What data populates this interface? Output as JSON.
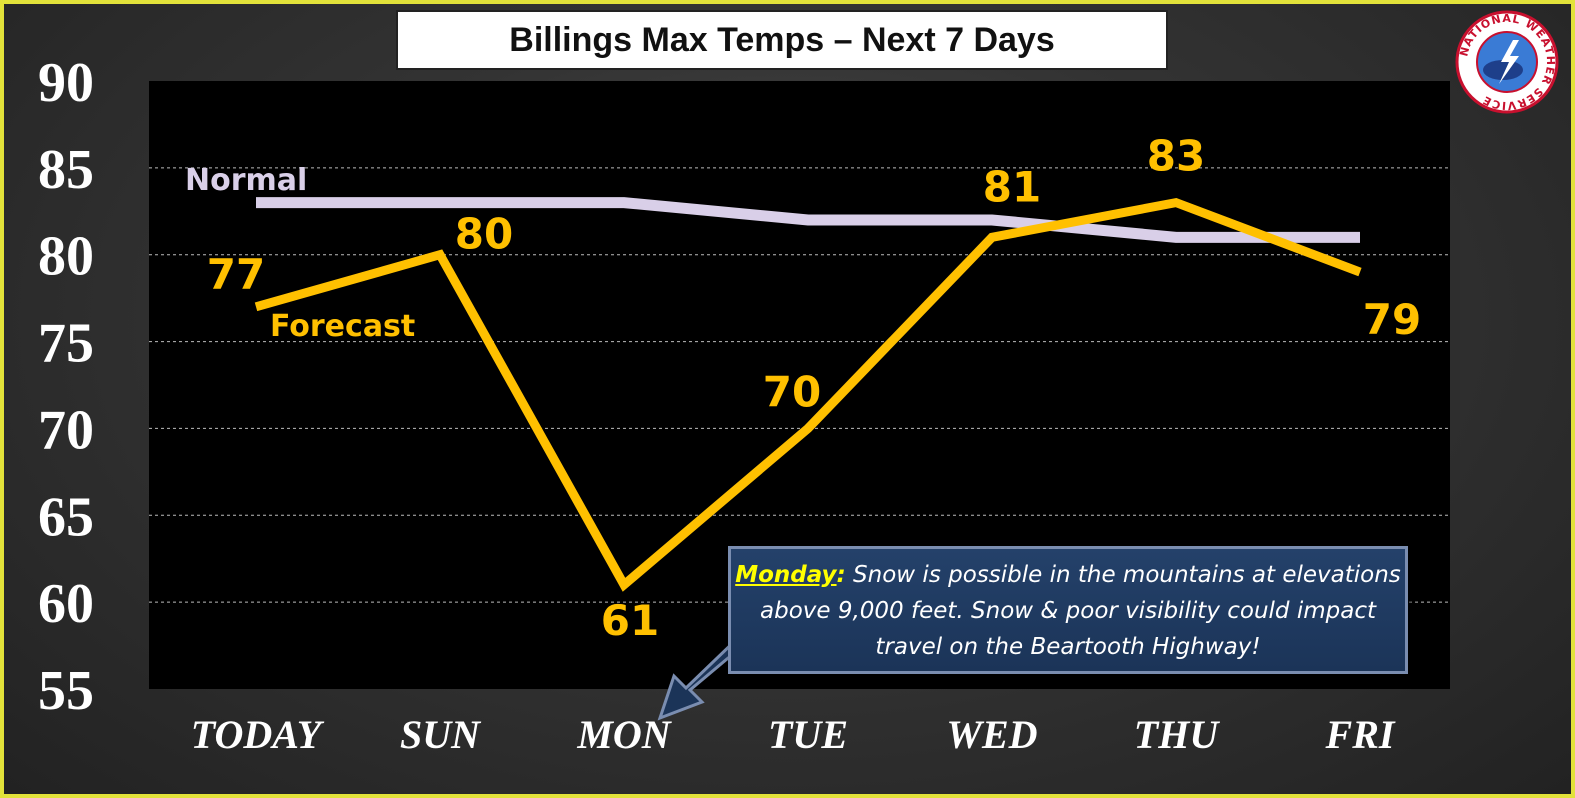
{
  "chart_data": {
    "type": "line",
    "title": "Billings Max Temps – Next 7 Days",
    "categories": [
      "TODAY",
      "SUN",
      "MON",
      "TUE",
      "WED",
      "THU",
      "FRI"
    ],
    "series": [
      {
        "name": "Normal",
        "values": [
          83,
          83,
          83,
          82,
          82,
          81,
          81
        ],
        "color": "#d9cfe8"
      },
      {
        "name": "Forecast",
        "values": [
          77,
          80,
          61,
          70,
          81,
          83,
          79
        ],
        "color": "#ffc000"
      }
    ],
    "data_labels": [
      "77",
      "80",
      "61",
      "70",
      "81",
      "83",
      "79"
    ],
    "ylim": [
      55,
      90
    ],
    "yticks": [
      "90",
      "85",
      "80",
      "75",
      "70",
      "65",
      "60",
      "55"
    ],
    "grid": true,
    "plot_background": "#000000",
    "legend": "inline labels"
  },
  "callout": {
    "highlight": "Monday",
    "colon": ":",
    "text": " Snow is possible in the mountains at elevations above 9,000 feet. Snow & poor visibility could impact travel on the Beartooth Highway!"
  },
  "logo": {
    "text": "NATIONAL WEATHER SERVICE",
    "icon": "nws-logo-icon"
  }
}
